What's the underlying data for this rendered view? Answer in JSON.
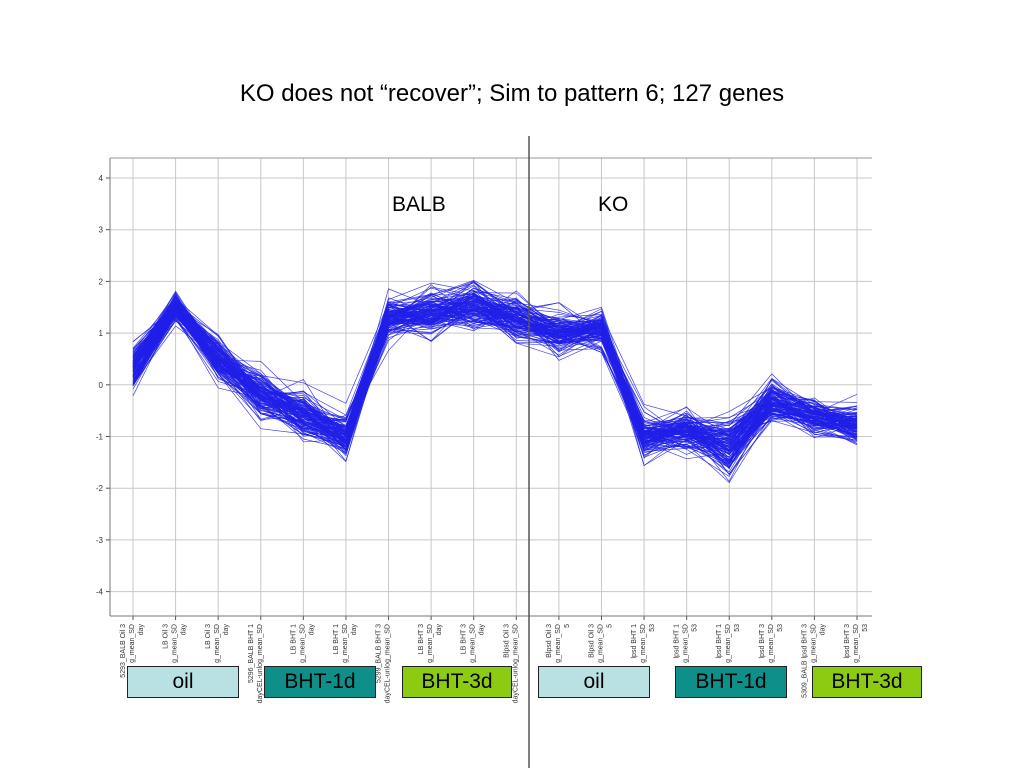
{
  "slide": {
    "title": "KO does not “recover”; Sim to pattern 6; 127 genes"
  },
  "colors": {
    "line": "#2020e8",
    "grid": "#c8c8c8",
    "oil_box": "#b9e1e3",
    "bht1d_box": "#0e8f8a",
    "bht3d_box": "#8ccb12",
    "divider": "#555555"
  },
  "chart_data": {
    "type": "line",
    "title": "KO does not “recover”; Sim to pattern 6; 127 genes",
    "xlabel": "",
    "ylabel": "",
    "ylim": [
      -4.3,
      4.3
    ],
    "yticks": [
      "4",
      "3",
      "2",
      "1",
      "0",
      "-1",
      "-2",
      "-3",
      "-4"
    ],
    "grid": true,
    "n_series": 127,
    "categories": [
      "5293_BALB Oil 3 day…g_mean_SD",
      "5294_BALB Oil 3 day…g_mean_SD",
      "5295_BALB Oil 3 day…g_mean_SD",
      "5296_BALB BHT 1 day…g_mean_SD",
      "5297_BALB BHT 1 day…g_mean_SD",
      "5298_BALB BHT 1 day…g_mean_SD",
      "5299_BALB BHT 3 dayCEL-unlog_mean_SD",
      "5300_BALB BHT 3 day…g_mean_SD",
      "5301_BALB BHT 3 day…g_mean_SD",
      "5302_Blpsd Oil 3 dayCEL-unlog_mean_SD",
      "5303_Blpsd Oil 3 day…g_mean_SD",
      "5304_Blpsd Oil 3 day…g_mean_SD",
      "5305_Blpsd BHT 1 day…g_mean_SD",
      "5306_Blpsd BHT 1 day…g_mean_SD",
      "5307_Blpsd BHT 1 day…g_mean_SD",
      "5308_Blpsd BHT 3 day…g_mean_SD",
      "5309_BALB Blpsd BHT 3 day…g_mean_SD",
      "5310_Blpsd BHT 3 day…g_mean_SD"
    ],
    "tick_labels_visible": [
      "5293_BALB Oil 3\ng_mean_SD\nday",
      "LB Oil 3\ng_mean_SD\nday",
      "LB Oil 3\ng_mean_SD\nday",
      "5296_BALB BHT 1\ndayCEL-unlog_mean_SD",
      "LB BHT 1\ng_mean_SD\nday",
      "LB BHT 1\ng_mean_SD\nday",
      "5299_BALB BHT 3\ndayCEL-unlog_mean_SD",
      "LB BHT 3\ng_mean_SD\nday",
      "LB BHT 3\ng_mean_SD\nday",
      "Blpsd Oil 3\ndayCEL-unlog_mean_SD",
      "Blpsd Oil 3\ng_mean_SD\n5",
      "Blpsd Oil 3\ng_mean_SD\n5",
      "lpsd BHT 1\ng_mean_SD\n53",
      "lpsd BHT 1\ng_mean_SD\n53",
      "lpsd BHT 1\ng_mean_SD\n53",
      "lpsd BHT 3\ng_mean_SD\n53",
      "5309_BALB lpsd BHT 3\ng_mean_SD\nday",
      "lpsd BHT 3\ng_mean_SD\n53"
    ],
    "mean_profile": [
      0.3,
      1.5,
      0.5,
      -0.2,
      -0.6,
      -1.0,
      1.3,
      1.4,
      1.55,
      1.3,
      1.0,
      1.1,
      -1.0,
      -0.9,
      -1.2,
      -0.3,
      -0.6,
      -0.8
    ],
    "spread": [
      0.35,
      0.18,
      0.35,
      0.35,
      0.35,
      0.3,
      0.3,
      0.35,
      0.35,
      0.35,
      0.3,
      0.3,
      0.35,
      0.3,
      0.4,
      0.3,
      0.25,
      0.3
    ],
    "groups": [
      {
        "label": "oil",
        "start": 0,
        "end": 2
      },
      {
        "label": "BHT-1d",
        "start": 3,
        "end": 5
      },
      {
        "label": "BHT-3d",
        "start": 6,
        "end": 8
      },
      {
        "label": "oil",
        "start": 9,
        "end": 11
      },
      {
        "label": "BHT-1d",
        "start": 12,
        "end": 14
      },
      {
        "label": "BHT-3d",
        "start": 15,
        "end": 17
      }
    ],
    "annotations": [
      {
        "text": "BALB"
      },
      {
        "text": "KO"
      }
    ]
  }
}
